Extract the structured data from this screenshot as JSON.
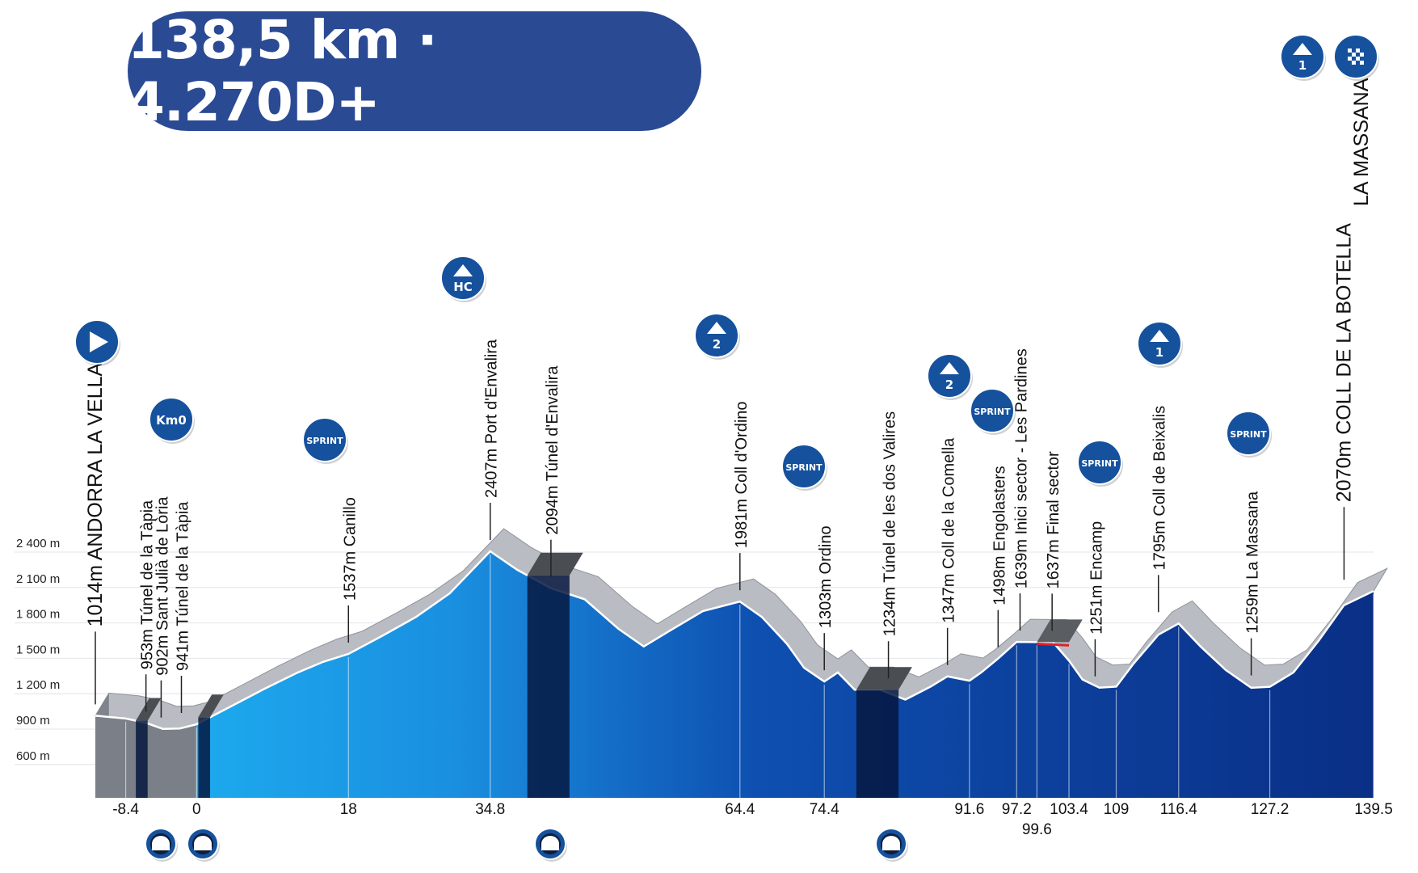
{
  "headline": "138,5 km · 4.270D+",
  "colors": {
    "primary": "#2a4a94",
    "badge": "#15519d",
    "road": "#b9bcc2",
    "sea": "#1aa8ec",
    "deep": "#0a2f86"
  },
  "chart_data": {
    "type": "area",
    "title": "",
    "xlabel": "",
    "ylabel": "",
    "xlim": [
      -12,
      139.5
    ],
    "ylim": [
      300,
      2600
    ],
    "grid": true,
    "y_ticks": [
      "2 400 m",
      "2 100 m",
      "1 800 m",
      "1 500 m",
      "1 200 m",
      "900 m",
      "600 m"
    ],
    "y_tick_values": [
      2400,
      2100,
      1800,
      1500,
      1200,
      900,
      600
    ],
    "x_ticks": [
      "-8.4",
      "0",
      "18",
      "34.8",
      "64.4",
      "74.4",
      "91.6",
      "97.2",
      "99.6",
      "103.4",
      "109",
      "116.4",
      "127.2",
      "139.5"
    ],
    "x_tick_values": [
      -8.4,
      0,
      18,
      34.8,
      64.4,
      74.4,
      91.6,
      97.2,
      99.6,
      103.4,
      109,
      116.4,
      127.2,
      139.5
    ],
    "profile": {
      "x": [
        -12,
        -8.4,
        -6,
        -4,
        -2,
        0,
        4,
        8,
        12,
        15,
        18,
        22,
        26,
        30,
        34.8,
        38,
        42,
        46,
        50,
        53,
        56,
        60,
        64.4,
        67,
        70,
        72,
        74.4,
        76,
        78,
        81,
        84,
        87,
        89,
        91.6,
        93,
        95,
        97.2,
        99.6,
        101.5,
        103.4,
        105,
        107,
        109,
        111,
        114,
        116.4,
        119,
        122,
        125,
        127.2,
        130,
        133,
        136,
        139.5
      ],
      "y": [
        1014,
        990,
        953,
        902,
        905,
        941,
        1090,
        1240,
        1380,
        1470,
        1537,
        1690,
        1850,
        2050,
        2407,
        2250,
        2094,
        2000,
        1750,
        1600,
        1730,
        1900,
        1981,
        1850,
        1620,
        1420,
        1303,
        1380,
        1234,
        1234,
        1150,
        1260,
        1347,
        1310,
        1380,
        1498,
        1639,
        1637,
        1637,
        1480,
        1320,
        1251,
        1260,
        1450,
        1700,
        1795,
        1600,
        1400,
        1250,
        1259,
        1380,
        1650,
        1950,
        2070
      ]
    },
    "tunnels": [
      [
        -7.2,
        -5.8
      ],
      [
        0.2,
        1.6
      ],
      [
        39.2,
        44.2
      ],
      [
        78.2,
        83.2
      ]
    ],
    "cobbled_sector": [
      99.6,
      103.4
    ],
    "points": [
      {
        "label": "1014m ANDORRA LA VELLA",
        "km": -12,
        "alt": 1014,
        "size": "big"
      },
      {
        "label": "953m Túnel de la Tàpia",
        "km": -6,
        "alt": 953
      },
      {
        "label": "902m Sant Julià de Lòria",
        "km": -4.2,
        "alt": 902
      },
      {
        "label": "941m Túnel de la Tàpia",
        "km": -1.8,
        "alt": 941
      },
      {
        "label": "1537m Canillo",
        "km": 18,
        "alt": 1537
      },
      {
        "label": "2407m Port d'Envalira",
        "km": 34.8,
        "alt": 2407
      },
      {
        "label": "2094m Túnel d'Envalira",
        "km": 42,
        "alt": 2094
      },
      {
        "label": "1981m Coll d'Ordino",
        "km": 64.4,
        "alt": 1981
      },
      {
        "label": "1303m Ordino",
        "km": 74.4,
        "alt": 1303
      },
      {
        "label": "1234m Túnel de les dos Valires",
        "km": 82,
        "alt": 1234
      },
      {
        "label": "1347m Coll de la Comella",
        "km": 89,
        "alt": 1347
      },
      {
        "label": "1498m Engolasters",
        "km": 95,
        "alt": 1498
      },
      {
        "label": "1639m Inici sector - Les Pardines",
        "km": 97.6,
        "alt": 1639
      },
      {
        "label": "1637m Final sector",
        "km": 101.4,
        "alt": 1637
      },
      {
        "label": "1251m Encamp",
        "km": 106.5,
        "alt": 1251
      },
      {
        "label": "1795m Coll de Beixalis",
        "km": 114,
        "alt": 1795
      },
      {
        "label": "1259m La Massana",
        "km": 125,
        "alt": 1259
      },
      {
        "label": "2070m COLL DE LA BOTELLA",
        "km": 136,
        "alt": 2070,
        "size": "big"
      }
    ],
    "top_right_label": "LA MASSANA"
  },
  "badges": [
    {
      "name": "start-icon",
      "kind": "start",
      "text": ""
    },
    {
      "name": "km0-badge",
      "kind": "text",
      "text": "Km0"
    },
    {
      "name": "sprint-badge-canillo",
      "kind": "sprint",
      "text": "SPRINT"
    },
    {
      "name": "climb-badge-envalira",
      "kind": "climb",
      "text": "HC"
    },
    {
      "name": "climb-badge-ordino",
      "kind": "climb",
      "text": "2"
    },
    {
      "name": "sprint-badge-ordino",
      "kind": "sprint",
      "text": "SPRINT"
    },
    {
      "name": "climb-badge-comella",
      "kind": "climb",
      "text": "2"
    },
    {
      "name": "sprint-badge-engolasters",
      "kind": "sprint",
      "text": "SPRINT"
    },
    {
      "name": "sprint-badge-encamp",
      "kind": "sprint",
      "text": "SPRINT"
    },
    {
      "name": "climb-badge-beixalis",
      "kind": "climb",
      "text": "1"
    },
    {
      "name": "sprint-badge-massana",
      "kind": "sprint",
      "text": "SPRINT"
    },
    {
      "name": "climb-badge-finish",
      "kind": "climb",
      "text": "1"
    },
    {
      "name": "finish-flag-icon",
      "kind": "finish",
      "text": ""
    },
    {
      "name": "tunnel-icon-tapia-1",
      "kind": "tunnel",
      "text": ""
    },
    {
      "name": "tunnel-icon-tapia-2",
      "kind": "tunnel",
      "text": ""
    },
    {
      "name": "tunnel-icon-envalira",
      "kind": "tunnel",
      "text": ""
    },
    {
      "name": "tunnel-icon-valires",
      "kind": "tunnel",
      "text": ""
    }
  ]
}
